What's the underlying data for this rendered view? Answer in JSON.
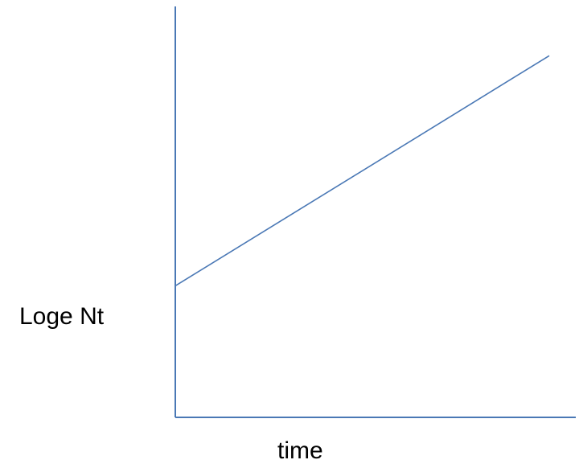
{
  "chart_data": {
    "type": "line",
    "title": "",
    "xlabel": "time",
    "ylabel": "Loge  Nt",
    "xlim": [
      0,
      1
    ],
    "ylim": [
      0,
      1
    ],
    "grid": false,
    "legend": "none",
    "series": [
      {
        "x": [
          0,
          1
        ],
        "y": [
          0.32,
          0.88
        ]
      }
    ],
    "colors": {
      "axis": "#4a78b5",
      "line": "#4a78b5"
    }
  }
}
